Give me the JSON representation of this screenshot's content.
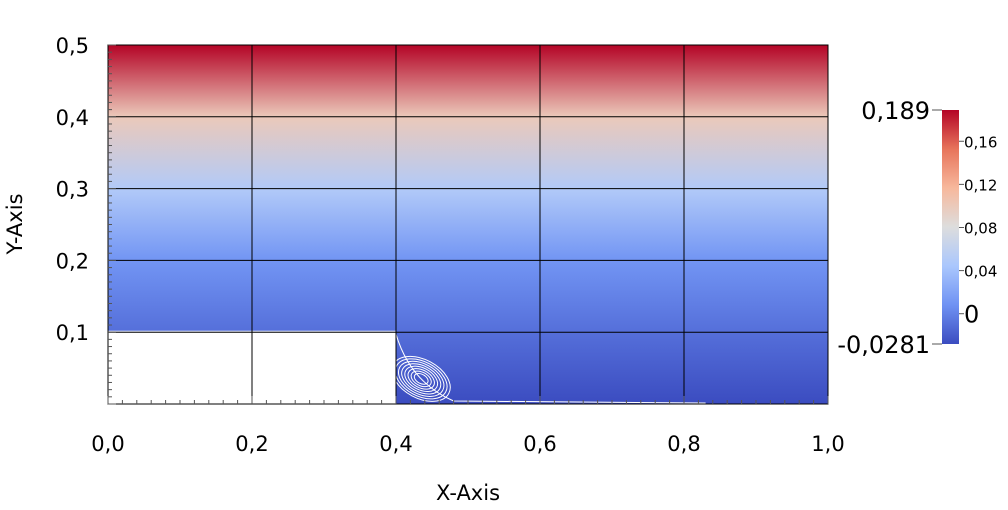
{
  "chart_data": {
    "type": "heatmap",
    "xlabel": "X-Axis",
    "ylabel": "Y-Axis",
    "xlim": [
      0.0,
      1.0
    ],
    "ylim": [
      0.0,
      0.5
    ],
    "x_ticks": [
      {
        "value": 0.0,
        "label": "0,0"
      },
      {
        "value": 0.2,
        "label": "0,2"
      },
      {
        "value": 0.4,
        "label": "0,4"
      },
      {
        "value": 0.6,
        "label": "0,6"
      },
      {
        "value": 0.8,
        "label": "0,8"
      },
      {
        "value": 1.0,
        "label": "1,0"
      }
    ],
    "y_ticks": [
      {
        "value": 0.1,
        "label": "0,1"
      },
      {
        "value": 0.2,
        "label": "0,2"
      },
      {
        "value": 0.3,
        "label": "0,3"
      },
      {
        "value": 0.4,
        "label": "0,4"
      },
      {
        "value": 0.5,
        "label": "0,5"
      }
    ],
    "grid": true,
    "field": {
      "description": "",
      "value_at_y": [
        {
          "y": 0.0,
          "value": -0.0281
        },
        {
          "y": 0.1,
          "value": -0.01
        },
        {
          "y": 0.2,
          "value": 0.01
        },
        {
          "y": 0.3,
          "value": 0.05
        },
        {
          "y": 0.4,
          "value": 0.1
        },
        {
          "y": 0.5,
          "value": 0.189
        }
      ]
    },
    "obstacle": {
      "x": [
        0.0,
        0.4
      ],
      "y": [
        0.0,
        0.1
      ]
    },
    "vortex": {
      "center_x": 0.435,
      "center_y": 0.035
    },
    "colorbar": {
      "min": -0.0281,
      "max": 0.189,
      "min_label": "-0,0281",
      "max_label": "0,189",
      "ticks": [
        {
          "value": 0.16,
          "label": "0,16"
        },
        {
          "value": 0.12,
          "label": "0,12"
        },
        {
          "value": 0.08,
          "label": "0,08"
        },
        {
          "value": 0.04,
          "label": "0,04"
        },
        {
          "value": 0.0,
          "label": "0"
        }
      ],
      "colormap": [
        "#3b4cc0",
        "#6f92f3",
        "#aac7fd",
        "#dddddd",
        "#f7b89c",
        "#e7745b",
        "#b40426"
      ]
    }
  }
}
